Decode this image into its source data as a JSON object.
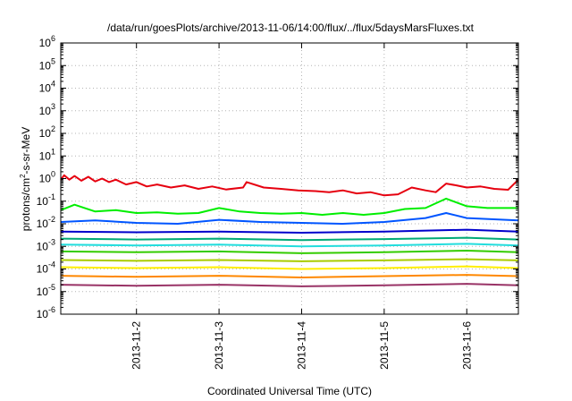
{
  "chart_data": {
    "type": "line",
    "title": "/data/run/goesPlots/archive/2013-11-06/14:00/flux/../flux/5daysMarsFluxes.txt",
    "xlabel": "Coordinated Universal Time (UTC)",
    "ylabel": {
      "prefix": "protons/cm",
      "exp": "2",
      "suffix": "-s-sr-MeV"
    },
    "xscale": "time",
    "yscale": "log",
    "xlim": [
      "2013-11-01T02:00",
      "2013-11-06T15:00"
    ],
    "ylim": [
      1e-06,
      1000000.0
    ],
    "grid": true,
    "legend": "none",
    "x_ticks": [
      {
        "label": "2013-11-2",
        "value": "2013-11-02T00:00"
      },
      {
        "label": "2013-11-3",
        "value": "2013-11-03T00:00"
      },
      {
        "label": "2013-11-4",
        "value": "2013-11-04T00:00"
      },
      {
        "label": "2013-11-5",
        "value": "2013-11-05T00:00"
      },
      {
        "label": "2013-11-6",
        "value": "2013-11-06T00:00"
      }
    ],
    "y_ticks": [
      {
        "base": "10",
        "exp": "-6"
      },
      {
        "base": "10",
        "exp": "-5"
      },
      {
        "base": "10",
        "exp": "-4"
      },
      {
        "base": "10",
        "exp": "-3"
      },
      {
        "base": "10",
        "exp": "-2"
      },
      {
        "base": "10",
        "exp": "-1"
      },
      {
        "base": "10",
        "exp": "0"
      },
      {
        "base": "10",
        "exp": "1"
      },
      {
        "base": "10",
        "exp": "2"
      },
      {
        "base": "10",
        "exp": "3"
      },
      {
        "base": "10",
        "exp": "4"
      },
      {
        "base": "10",
        "exp": "5"
      },
      {
        "base": "10",
        "exp": "6"
      }
    ],
    "series": [
      {
        "color": "#e6000f",
        "x": [
          "2013-11-01T02:00",
          "2013-11-01T03:00",
          "2013-11-01T04:30",
          "2013-11-01T06:00",
          "2013-11-01T08:00",
          "2013-11-01T10:00",
          "2013-11-01T12:00",
          "2013-11-01T14:00",
          "2013-11-01T16:00",
          "2013-11-01T18:00",
          "2013-11-01T21:00",
          "2013-11-02T00:00",
          "2013-11-02T03:00",
          "2013-11-02T06:00",
          "2013-11-02T10:00",
          "2013-11-02T14:00",
          "2013-11-02T18:00",
          "2013-11-02T22:00",
          "2013-11-03T02:00",
          "2013-11-03T07:00",
          "2013-11-03T08:00",
          "2013-11-03T13:00",
          "2013-11-03T18:00",
          "2013-11-03T23:00",
          "2013-11-04T04:00",
          "2013-11-04T08:00",
          "2013-11-04T12:00",
          "2013-11-04T16:00",
          "2013-11-04T20:00",
          "2013-11-05T00:00",
          "2013-11-05T04:00",
          "2013-11-05T08:00",
          "2013-11-05T12:00",
          "2013-11-05T15:00",
          "2013-11-05T18:00",
          "2013-11-05T21:00",
          "2013-11-06T00:00",
          "2013-11-06T04:00",
          "2013-11-06T08:00",
          "2013-11-06T12:00",
          "2013-11-06T15:00"
        ],
        "y": [
          0.9,
          1.4,
          0.9,
          1.3,
          0.8,
          1.2,
          0.75,
          1.0,
          0.7,
          0.9,
          0.55,
          0.7,
          0.45,
          0.55,
          0.4,
          0.5,
          0.35,
          0.45,
          0.33,
          0.4,
          0.7,
          0.4,
          0.35,
          0.3,
          0.28,
          0.25,
          0.3,
          0.22,
          0.25,
          0.18,
          0.2,
          0.4,
          0.3,
          0.25,
          0.6,
          0.5,
          0.4,
          0.45,
          0.35,
          0.32,
          0.9
        ]
      },
      {
        "color": "#00ee00",
        "x": [
          "2013-11-01T02:00",
          "2013-11-01T06:00",
          "2013-11-01T12:00",
          "2013-11-01T18:00",
          "2013-11-02T00:00",
          "2013-11-02T06:00",
          "2013-11-02T12:00",
          "2013-11-02T18:00",
          "2013-11-03T00:00",
          "2013-11-03T06:00",
          "2013-11-03T12:00",
          "2013-11-03T18:00",
          "2013-11-04T00:00",
          "2013-11-04T06:00",
          "2013-11-04T12:00",
          "2013-11-04T18:00",
          "2013-11-05T00:00",
          "2013-11-05T06:00",
          "2013-11-05T12:00",
          "2013-11-05T18:00",
          "2013-11-06T00:00",
          "2013-11-06T06:00",
          "2013-11-06T15:00"
        ],
        "y": [
          0.04,
          0.07,
          0.035,
          0.04,
          0.03,
          0.032,
          0.028,
          0.03,
          0.05,
          0.035,
          0.03,
          0.028,
          0.03,
          0.025,
          0.03,
          0.025,
          0.03,
          0.045,
          0.05,
          0.13,
          0.06,
          0.05,
          0.05
        ]
      },
      {
        "color": "#0055ff",
        "x": [
          "2013-11-01T02:00",
          "2013-11-01T12:00",
          "2013-11-02T00:00",
          "2013-11-02T12:00",
          "2013-11-03T00:00",
          "2013-11-03T12:00",
          "2013-11-04T00:00",
          "2013-11-04T12:00",
          "2013-11-05T00:00",
          "2013-11-05T12:00",
          "2013-11-05T18:00",
          "2013-11-06T00:00",
          "2013-11-06T15:00"
        ],
        "y": [
          0.012,
          0.014,
          0.011,
          0.01,
          0.015,
          0.012,
          0.011,
          0.01,
          0.012,
          0.018,
          0.03,
          0.018,
          0.014
        ]
      },
      {
        "color": "#0000cc",
        "x": [
          "2013-11-01T02:00",
          "2013-11-02T00:00",
          "2013-11-03T00:00",
          "2013-11-04T00:00",
          "2013-11-05T00:00",
          "2013-11-06T00:00",
          "2013-11-06T15:00"
        ],
        "y": [
          0.0045,
          0.0042,
          0.0045,
          0.004,
          0.0045,
          0.0055,
          0.0045
        ]
      },
      {
        "color": "#00aa77",
        "x": [
          "2013-11-01T02:00",
          "2013-11-02T00:00",
          "2013-11-03T00:00",
          "2013-11-04T00:00",
          "2013-11-05T00:00",
          "2013-11-06T00:00",
          "2013-11-06T15:00"
        ],
        "y": [
          0.0022,
          0.002,
          0.0022,
          0.0019,
          0.0021,
          0.0024,
          0.002
        ]
      },
      {
        "color": "#22dddd",
        "x": [
          "2013-11-01T02:00",
          "2013-11-02T00:00",
          "2013-11-03T00:00",
          "2013-11-04T00:00",
          "2013-11-05T00:00",
          "2013-11-06T00:00",
          "2013-11-06T15:00"
        ],
        "y": [
          0.0012,
          0.0011,
          0.0012,
          0.001,
          0.0011,
          0.0013,
          0.0011
        ]
      },
      {
        "color": "#33cc00",
        "x": [
          "2013-11-01T02:00",
          "2013-11-02T00:00",
          "2013-11-03T00:00",
          "2013-11-04T00:00",
          "2013-11-05T00:00",
          "2013-11-06T00:00",
          "2013-11-06T15:00"
        ],
        "y": [
          0.0006,
          0.00055,
          0.0006,
          0.0005,
          0.00055,
          0.00065,
          0.00055
        ]
      },
      {
        "color": "#aacc00",
        "x": [
          "2013-11-01T02:00",
          "2013-11-02T00:00",
          "2013-11-03T00:00",
          "2013-11-04T00:00",
          "2013-11-05T00:00",
          "2013-11-06T00:00",
          "2013-11-06T15:00"
        ],
        "y": [
          0.00025,
          0.00023,
          0.00025,
          0.00022,
          0.00024,
          0.00027,
          0.00024
        ]
      },
      {
        "color": "#ffee00",
        "x": [
          "2013-11-01T02:00",
          "2013-11-02T00:00",
          "2013-11-03T00:00",
          "2013-11-04T00:00",
          "2013-11-05T00:00",
          "2013-11-06T00:00",
          "2013-11-06T15:00"
        ],
        "y": [
          0.00012,
          0.00011,
          0.00012,
          0.0001,
          0.00011,
          0.00013,
          0.00011
        ]
      },
      {
        "color": "#ff8800",
        "x": [
          "2013-11-01T02:00",
          "2013-11-02T00:00",
          "2013-11-03T00:00",
          "2013-11-04T00:00",
          "2013-11-05T00:00",
          "2013-11-06T00:00",
          "2013-11-06T15:00"
        ],
        "y": [
          5e-05,
          4.5e-05,
          5e-05,
          4.2e-05,
          4.8e-05,
          5.5e-05,
          4.8e-05
        ]
      },
      {
        "color": "#993366",
        "x": [
          "2013-11-01T02:00",
          "2013-11-02T00:00",
          "2013-11-03T00:00",
          "2013-11-04T00:00",
          "2013-11-05T00:00",
          "2013-11-06T00:00",
          "2013-11-06T15:00"
        ],
        "y": [
          2e-05,
          1.8e-05,
          2e-05,
          1.7e-05,
          1.9e-05,
          2.2e-05,
          1.9e-05
        ]
      }
    ]
  }
}
